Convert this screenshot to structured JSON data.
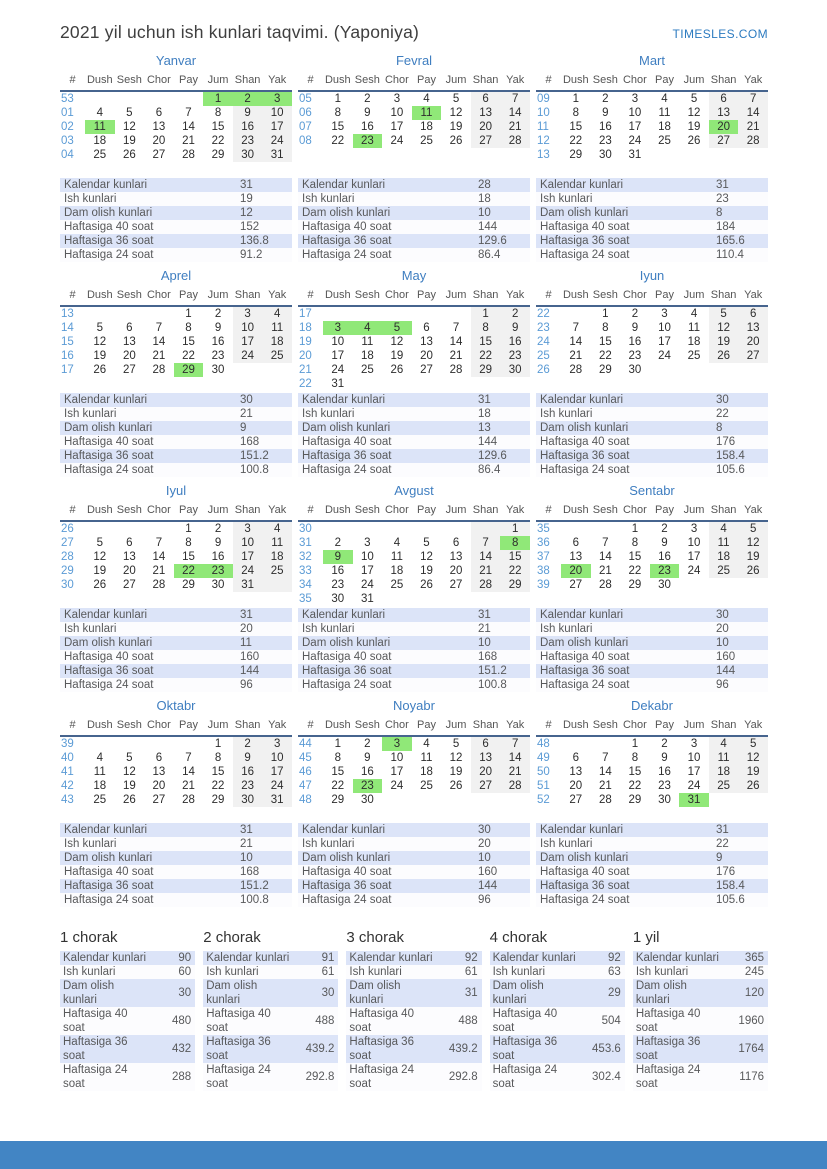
{
  "header": {
    "title": "2021 yil uchun ish kunlari taqvimi. (Yaponiya)",
    "site": "TIMESLES.COM"
  },
  "calendar": {
    "day_headers": [
      "#",
      "Dush",
      "Sesh",
      "Chor",
      "Pay",
      "Jum",
      "Shan",
      "Yak"
    ],
    "stat_labels": [
      "Kalendar kunlari",
      "Ish kunlari",
      "Dam olish kunlari",
      "Haftasiga 40 soat",
      "Haftasiga 36 soat",
      "Haftasiga 24 soat"
    ],
    "months": [
      {
        "name": "Yanvar",
        "holidays": [
          1,
          2,
          3,
          11
        ],
        "weeks": [
          {
            "num": "53",
            "days": [
              "",
              "",
              "",
              "",
              "1",
              "2",
              "3"
            ]
          },
          {
            "num": "01",
            "days": [
              "4",
              "5",
              "6",
              "7",
              "8",
              "9",
              "10"
            ]
          },
          {
            "num": "02",
            "days": [
              "11",
              "12",
              "13",
              "14",
              "15",
              "16",
              "17"
            ]
          },
          {
            "num": "03",
            "days": [
              "18",
              "19",
              "20",
              "21",
              "22",
              "23",
              "24"
            ]
          },
          {
            "num": "04",
            "days": [
              "25",
              "26",
              "27",
              "28",
              "29",
              "30",
              "31"
            ]
          }
        ],
        "stats": [
          "31",
          "19",
          "12",
          "152",
          "136.8",
          "91.2"
        ]
      },
      {
        "name": "Fevral",
        "holidays": [
          11,
          23
        ],
        "weeks": [
          {
            "num": "05",
            "days": [
              "1",
              "2",
              "3",
              "4",
              "5",
              "6",
              "7"
            ]
          },
          {
            "num": "06",
            "days": [
              "8",
              "9",
              "10",
              "11",
              "12",
              "13",
              "14"
            ]
          },
          {
            "num": "07",
            "days": [
              "15",
              "16",
              "17",
              "18",
              "19",
              "20",
              "21"
            ]
          },
          {
            "num": "08",
            "days": [
              "22",
              "23",
              "24",
              "25",
              "26",
              "27",
              "28"
            ]
          }
        ],
        "stats": [
          "28",
          "18",
          "10",
          "144",
          "129.6",
          "86.4"
        ]
      },
      {
        "name": "Mart",
        "holidays": [
          20
        ],
        "weeks": [
          {
            "num": "09",
            "days": [
              "1",
              "2",
              "3",
              "4",
              "5",
              "6",
              "7"
            ]
          },
          {
            "num": "10",
            "days": [
              "8",
              "9",
              "10",
              "11",
              "12",
              "13",
              "14"
            ]
          },
          {
            "num": "11",
            "days": [
              "15",
              "16",
              "17",
              "18",
              "19",
              "20",
              "21"
            ]
          },
          {
            "num": "12",
            "days": [
              "22",
              "23",
              "24",
              "25",
              "26",
              "27",
              "28"
            ]
          },
          {
            "num": "13",
            "days": [
              "29",
              "30",
              "31",
              "",
              "",
              "",
              ""
            ]
          }
        ],
        "stats": [
          "31",
          "23",
          "8",
          "184",
          "165.6",
          "110.4"
        ]
      },
      {
        "name": "Aprel",
        "holidays": [
          29
        ],
        "weeks": [
          {
            "num": "13",
            "days": [
              "",
              "",
              "",
              "1",
              "2",
              "3",
              "4"
            ]
          },
          {
            "num": "14",
            "days": [
              "5",
              "6",
              "7",
              "8",
              "9",
              "10",
              "11"
            ]
          },
          {
            "num": "15",
            "days": [
              "12",
              "13",
              "14",
              "15",
              "16",
              "17",
              "18"
            ]
          },
          {
            "num": "16",
            "days": [
              "19",
              "20",
              "21",
              "22",
              "23",
              "24",
              "25"
            ]
          },
          {
            "num": "17",
            "days": [
              "26",
              "27",
              "28",
              "29",
              "30",
              "",
              ""
            ]
          }
        ],
        "stats": [
          "30",
          "21",
          "9",
          "168",
          "151.2",
          "100.8"
        ]
      },
      {
        "name": "May",
        "holidays": [
          3,
          4,
          5
        ],
        "weeks": [
          {
            "num": "17",
            "days": [
              "",
              "",
              "",
              "",
              "",
              "1",
              "2"
            ]
          },
          {
            "num": "18",
            "days": [
              "3",
              "4",
              "5",
              "6",
              "7",
              "8",
              "9"
            ]
          },
          {
            "num": "19",
            "days": [
              "10",
              "11",
              "12",
              "13",
              "14",
              "15",
              "16"
            ]
          },
          {
            "num": "20",
            "days": [
              "17",
              "18",
              "19",
              "20",
              "21",
              "22",
              "23"
            ]
          },
          {
            "num": "21",
            "days": [
              "24",
              "25",
              "26",
              "27",
              "28",
              "29",
              "30"
            ]
          },
          {
            "num": "22",
            "days": [
              "31",
              "",
              "",
              "",
              "",
              "",
              ""
            ]
          }
        ],
        "stats": [
          "31",
          "18",
          "13",
          "144",
          "129.6",
          "86.4"
        ]
      },
      {
        "name": "Iyun",
        "holidays": [],
        "weeks": [
          {
            "num": "22",
            "days": [
              "",
              "1",
              "2",
              "3",
              "4",
              "5",
              "6"
            ]
          },
          {
            "num": "23",
            "days": [
              "7",
              "8",
              "9",
              "10",
              "11",
              "12",
              "13"
            ]
          },
          {
            "num": "24",
            "days": [
              "14",
              "15",
              "16",
              "17",
              "18",
              "19",
              "20"
            ]
          },
          {
            "num": "25",
            "days": [
              "21",
              "22",
              "23",
              "24",
              "25",
              "26",
              "27"
            ]
          },
          {
            "num": "26",
            "days": [
              "28",
              "29",
              "30",
              "",
              "",
              "",
              ""
            ]
          }
        ],
        "stats": [
          "30",
          "22",
          "8",
          "176",
          "158.4",
          "105.6"
        ]
      },
      {
        "name": "Iyul",
        "holidays": [
          22,
          23
        ],
        "weeks": [
          {
            "num": "26",
            "days": [
              "",
              "",
              "",
              "1",
              "2",
              "3",
              "4"
            ]
          },
          {
            "num": "27",
            "days": [
              "5",
              "6",
              "7",
              "8",
              "9",
              "10",
              "11"
            ]
          },
          {
            "num": "28",
            "days": [
              "12",
              "13",
              "14",
              "15",
              "16",
              "17",
              "18"
            ]
          },
          {
            "num": "29",
            "days": [
              "19",
              "20",
              "21",
              "22",
              "23",
              "24",
              "25"
            ]
          },
          {
            "num": "30",
            "days": [
              "26",
              "27",
              "28",
              "29",
              "30",
              "31",
              ""
            ]
          }
        ],
        "stats": [
          "31",
          "20",
          "11",
          "160",
          "144",
          "96"
        ]
      },
      {
        "name": "Avgust",
        "holidays": [
          8,
          9
        ],
        "weeks": [
          {
            "num": "30",
            "days": [
              "",
              "",
              "",
              "",
              "",
              "",
              "1"
            ]
          },
          {
            "num": "31",
            "days": [
              "2",
              "3",
              "4",
              "5",
              "6",
              "7",
              "8"
            ]
          },
          {
            "num": "32",
            "days": [
              "9",
              "10",
              "11",
              "12",
              "13",
              "14",
              "15"
            ]
          },
          {
            "num": "33",
            "days": [
              "16",
              "17",
              "18",
              "19",
              "20",
              "21",
              "22"
            ]
          },
          {
            "num": "34",
            "days": [
              "23",
              "24",
              "25",
              "26",
              "27",
              "28",
              "29"
            ]
          },
          {
            "num": "35",
            "days": [
              "30",
              "31",
              "",
              "",
              "",
              "",
              ""
            ]
          }
        ],
        "stats": [
          "31",
          "21",
          "10",
          "168",
          "151.2",
          "100.8"
        ]
      },
      {
        "name": "Sentabr",
        "holidays": [
          20,
          23
        ],
        "weeks": [
          {
            "num": "35",
            "days": [
              "",
              "",
              "1",
              "2",
              "3",
              "4",
              "5"
            ]
          },
          {
            "num": "36",
            "days": [
              "6",
              "7",
              "8",
              "9",
              "10",
              "11",
              "12"
            ]
          },
          {
            "num": "37",
            "days": [
              "13",
              "14",
              "15",
              "16",
              "17",
              "18",
              "19"
            ]
          },
          {
            "num": "38",
            "days": [
              "20",
              "21",
              "22",
              "23",
              "24",
              "25",
              "26"
            ]
          },
          {
            "num": "39",
            "days": [
              "27",
              "28",
              "29",
              "30",
              "",
              "",
              ""
            ]
          }
        ],
        "stats": [
          "30",
          "20",
          "10",
          "160",
          "144",
          "96"
        ]
      },
      {
        "name": "Oktabr",
        "holidays": [],
        "weeks": [
          {
            "num": "39",
            "days": [
              "",
              "",
              "",
              "",
              "1",
              "2",
              "3"
            ]
          },
          {
            "num": "40",
            "days": [
              "4",
              "5",
              "6",
              "7",
              "8",
              "9",
              "10"
            ]
          },
          {
            "num": "41",
            "days": [
              "11",
              "12",
              "13",
              "14",
              "15",
              "16",
              "17"
            ]
          },
          {
            "num": "42",
            "days": [
              "18",
              "19",
              "20",
              "21",
              "22",
              "23",
              "24"
            ]
          },
          {
            "num": "43",
            "days": [
              "25",
              "26",
              "27",
              "28",
              "29",
              "30",
              "31"
            ]
          }
        ],
        "stats": [
          "31",
          "21",
          "10",
          "168",
          "151.2",
          "100.8"
        ]
      },
      {
        "name": "Noyabr",
        "holidays": [
          3,
          23
        ],
        "weeks": [
          {
            "num": "44",
            "days": [
              "1",
              "2",
              "3",
              "4",
              "5",
              "6",
              "7"
            ]
          },
          {
            "num": "45",
            "days": [
              "8",
              "9",
              "10",
              "11",
              "12",
              "13",
              "14"
            ]
          },
          {
            "num": "46",
            "days": [
              "15",
              "16",
              "17",
              "18",
              "19",
              "20",
              "21"
            ]
          },
          {
            "num": "47",
            "days": [
              "22",
              "23",
              "24",
              "25",
              "26",
              "27",
              "28"
            ]
          },
          {
            "num": "48",
            "days": [
              "29",
              "30",
              "",
              "",
              "",
              "",
              ""
            ]
          }
        ],
        "stats": [
          "30",
          "20",
          "10",
          "160",
          "144",
          "96"
        ]
      },
      {
        "name": "Dekabr",
        "holidays": [
          31
        ],
        "weeks": [
          {
            "num": "48",
            "days": [
              "",
              "",
              "1",
              "2",
              "3",
              "4",
              "5"
            ]
          },
          {
            "num": "49",
            "days": [
              "6",
              "7",
              "8",
              "9",
              "10",
              "11",
              "12"
            ]
          },
          {
            "num": "50",
            "days": [
              "13",
              "14",
              "15",
              "16",
              "17",
              "18",
              "19"
            ]
          },
          {
            "num": "51",
            "days": [
              "20",
              "21",
              "22",
              "23",
              "24",
              "25",
              "26"
            ]
          },
          {
            "num": "52",
            "days": [
              "27",
              "28",
              "29",
              "30",
              "31",
              "",
              ""
            ]
          }
        ],
        "stats": [
          "31",
          "22",
          "9",
          "176",
          "158.4",
          "105.6"
        ]
      }
    ]
  },
  "summary": {
    "blocks": [
      {
        "title": "1 chorak",
        "stats": [
          "90",
          "60",
          "30",
          "480",
          "432",
          "288"
        ]
      },
      {
        "title": "2 chorak",
        "stats": [
          "91",
          "61",
          "30",
          "488",
          "439.2",
          "292.8"
        ]
      },
      {
        "title": "3 chorak",
        "stats": [
          "92",
          "61",
          "31",
          "488",
          "439.2",
          "292.8"
        ]
      },
      {
        "title": "4 chorak",
        "stats": [
          "92",
          "63",
          "29",
          "504",
          "453.6",
          "302.4"
        ]
      },
      {
        "title": "1 yil",
        "stats": [
          "365",
          "245",
          "120",
          "1960",
          "1764",
          "1176"
        ]
      }
    ]
  },
  "colors": {
    "accent_blue": "#3f7ec0",
    "week_number_blue": "#5b9bd5",
    "header_line_blue": "#46648e",
    "holiday_green": "#90e878",
    "weekend_gray": "#f1f1f1",
    "stat_row_blue": "#dce4f8",
    "site_link_blue": "#2c7bc0",
    "footer_blue": "#4285c4"
  }
}
